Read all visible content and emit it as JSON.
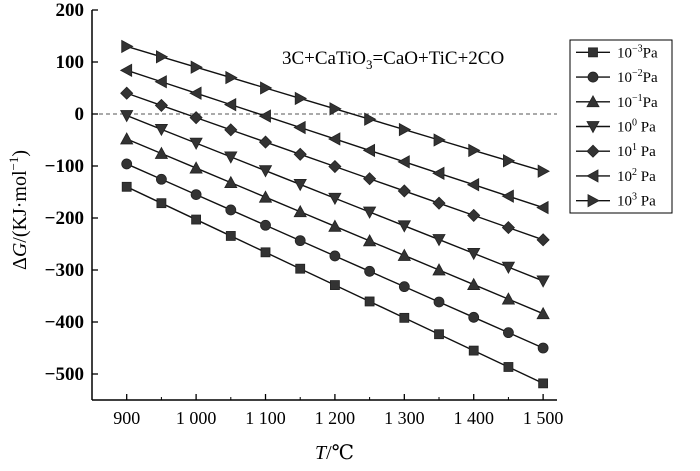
{
  "chart_data": {
    "type": "line",
    "title": "",
    "annotation": {
      "main": "3C+CaTiO",
      "sub": "3",
      "rest": "=CaO+TiC+2CO"
    },
    "xlabel": {
      "var": "T",
      "unit": "/℃"
    },
    "ylabel": {
      "delta": "Δ",
      "var": "G",
      "unit_open": "/(KJ·mol",
      "sup": "−1",
      "unit_close": ")"
    },
    "x": [
      900,
      950,
      1000,
      1050,
      1100,
      1150,
      1200,
      1250,
      1300,
      1350,
      1400,
      1450,
      1500
    ],
    "xlim": [
      850,
      1520
    ],
    "ylim": [
      -550,
      200
    ],
    "x_ticks": [
      900,
      1000,
      1100,
      1200,
      1300,
      1400,
      1500
    ],
    "x_tick_labels": [
      "900",
      "1 000",
      "1 100",
      "1 200",
      "1 300",
      "1 400",
      "1 500"
    ],
    "y_ticks": [
      200,
      100,
      0,
      -100,
      -200,
      -300,
      -400,
      -500
    ],
    "y_tick_labels": [
      "200",
      "100",
      "0",
      "−100",
      "−200",
      "−300",
      "−400",
      "−500"
    ],
    "reference_line": {
      "y": 0,
      "style": "dashed"
    },
    "legend_position": "top-right",
    "series": [
      {
        "name": "10−3Pa",
        "base": "10",
        "exp": "−3",
        "unit": "Pa",
        "marker": "square",
        "values": [
          -140,
          -171.5,
          -203,
          -234.5,
          -266,
          -297.5,
          -329,
          -360.5,
          -392,
          -423.5,
          -455,
          -486.5,
          -518
        ]
      },
      {
        "name": "10−2Pa",
        "base": "10",
        "exp": "−2",
        "unit": "Pa",
        "marker": "circle",
        "values": [
          -96,
          -125.5,
          -155,
          -184.5,
          -214,
          -243.5,
          -273,
          -302.5,
          -332,
          -361.5,
          -391,
          -420.5,
          -450
        ]
      },
      {
        "name": "10−1Pa",
        "base": "10",
        "exp": "−1",
        "unit": "Pa",
        "marker": "triangle-up",
        "values": [
          -48,
          -76,
          -104,
          -132,
          -160,
          -188,
          -216,
          -244,
          -272,
          -300,
          -328,
          -356,
          -384
        ]
      },
      {
        "name": "100 Pa",
        "base": "10",
        "exp": "0",
        "unit": " Pa",
        "marker": "triangle-down",
        "values": [
          -3,
          -29.5,
          -56,
          -82.5,
          -109,
          -135.5,
          -162,
          -188.5,
          -215,
          -241.5,
          -268,
          -294.5,
          -321
        ]
      },
      {
        "name": "101 Pa",
        "base": "10",
        "exp": "1",
        "unit": " Pa",
        "marker": "diamond",
        "values": [
          40,
          16.5,
          -7,
          -30.5,
          -54,
          -77.5,
          -101,
          -124.5,
          -148,
          -171.5,
          -195,
          -218.5,
          -242
        ]
      },
      {
        "name": "102 Pa",
        "base": "10",
        "exp": "2",
        "unit": " Pa",
        "marker": "triangle-left",
        "values": [
          84,
          62,
          40,
          18,
          -4,
          -26,
          -48,
          -70,
          -92,
          -114,
          -136,
          -158,
          -180
        ]
      },
      {
        "name": "103 Pa",
        "base": "10",
        "exp": "3",
        "unit": " Pa",
        "marker": "triangle-right",
        "values": [
          130,
          110,
          90,
          70,
          50,
          30,
          10,
          -10,
          -30,
          -50,
          -70,
          -90,
          -110
        ]
      }
    ]
  }
}
